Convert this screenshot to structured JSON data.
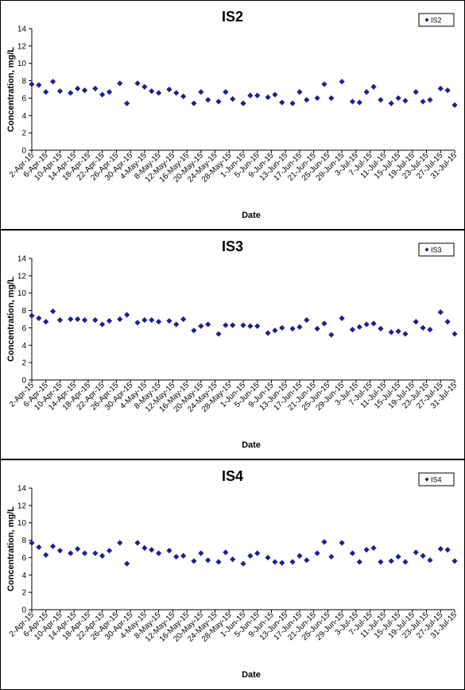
{
  "chart_data": [
    {
      "type": "scatter",
      "title": "IS2",
      "xlabel": "Date",
      "ylabel": "Concentration, mg/L",
      "ylim": [
        0,
        14
      ],
      "yticks": [
        0,
        2,
        4,
        6,
        8,
        10,
        12,
        14
      ],
      "grid": false,
      "legend_position": "top-right",
      "marker_color": "#1f1f8f",
      "xticks": [
        "2-Apr-15",
        "6-Apr-15",
        "10-Apr-15",
        "14-Apr-15",
        "18-Apr-15",
        "22-Apr-15",
        "26-Apr-15",
        "30-Apr-15",
        "4-May-15",
        "8-May-15",
        "12-May-15",
        "16-May-15",
        "20-May-15",
        "24-May-15",
        "28-May-15",
        "1-Jun-15",
        "5-Jun-15",
        "9-Jun-15",
        "13-Jun-15",
        "17-Jun-15",
        "21-Jun-15",
        "25-Jun-15",
        "29-Jun-15",
        "3-Jul-15",
        "7-Jul-15",
        "11-Jul-15",
        "15-Jul-15",
        "19-Jul-15",
        "23-Jul-15",
        "27-Jul-15",
        "31-Jul-15"
      ],
      "x_range": [
        "2-Apr-15",
        "31-Jul-15"
      ],
      "series": [
        {
          "name": "IS2",
          "points": [
            {
              "x": "2-Apr-15",
              "y": 7.6
            },
            {
              "x": "4-Apr-15",
              "y": 7.5
            },
            {
              "x": "6-Apr-15",
              "y": 6.7
            },
            {
              "x": "8-Apr-15",
              "y": 7.9
            },
            {
              "x": "10-Apr-15",
              "y": 6.8
            },
            {
              "x": "13-Apr-15",
              "y": 6.6
            },
            {
              "x": "15-Apr-15",
              "y": 7.1
            },
            {
              "x": "17-Apr-15",
              "y": 6.9
            },
            {
              "x": "20-Apr-15",
              "y": 7.1
            },
            {
              "x": "22-Apr-15",
              "y": 6.4
            },
            {
              "x": "24-Apr-15",
              "y": 6.7
            },
            {
              "x": "27-Apr-15",
              "y": 7.7
            },
            {
              "x": "29-Apr-15",
              "y": 5.4
            },
            {
              "x": "2-May-15",
              "y": 7.7
            },
            {
              "x": "4-May-15",
              "y": 7.3
            },
            {
              "x": "6-May-15",
              "y": 6.8
            },
            {
              "x": "8-May-15",
              "y": 6.6
            },
            {
              "x": "11-May-15",
              "y": 7.0
            },
            {
              "x": "13-May-15",
              "y": 6.6
            },
            {
              "x": "15-May-15",
              "y": 6.2
            },
            {
              "x": "18-May-15",
              "y": 5.4
            },
            {
              "x": "20-May-15",
              "y": 6.7
            },
            {
              "x": "22-May-15",
              "y": 5.8
            },
            {
              "x": "25-May-15",
              "y": 5.6
            },
            {
              "x": "27-May-15",
              "y": 6.7
            },
            {
              "x": "29-May-15",
              "y": 5.9
            },
            {
              "x": "1-Jun-15",
              "y": 5.4
            },
            {
              "x": "3-Jun-15",
              "y": 6.3
            },
            {
              "x": "5-Jun-15",
              "y": 6.3
            },
            {
              "x": "8-Jun-15",
              "y": 6.1
            },
            {
              "x": "10-Jun-15",
              "y": 6.4
            },
            {
              "x": "12-Jun-15",
              "y": 5.5
            },
            {
              "x": "15-Jun-15",
              "y": 5.4
            },
            {
              "x": "17-Jun-15",
              "y": 6.7
            },
            {
              "x": "19-Jun-15",
              "y": 5.8
            },
            {
              "x": "22-Jun-15",
              "y": 6.0
            },
            {
              "x": "24-Jun-15",
              "y": 7.6
            },
            {
              "x": "26-Jun-15",
              "y": 6.0
            },
            {
              "x": "29-Jun-15",
              "y": 7.9
            },
            {
              "x": "2-Jul-15",
              "y": 5.6
            },
            {
              "x": "4-Jul-15",
              "y": 5.5
            },
            {
              "x": "6-Jul-15",
              "y": 6.7
            },
            {
              "x": "8-Jul-15",
              "y": 7.3
            },
            {
              "x": "10-Jul-15",
              "y": 5.8
            },
            {
              "x": "13-Jul-15",
              "y": 5.4
            },
            {
              "x": "15-Jul-15",
              "y": 6.0
            },
            {
              "x": "17-Jul-15",
              "y": 5.7
            },
            {
              "x": "20-Jul-15",
              "y": 6.7
            },
            {
              "x": "22-Jul-15",
              "y": 5.6
            },
            {
              "x": "24-Jul-15",
              "y": 5.8
            },
            {
              "x": "27-Jul-15",
              "y": 7.1
            },
            {
              "x": "29-Jul-15",
              "y": 6.9
            },
            {
              "x": "31-Jul-15",
              "y": 5.2
            }
          ]
        }
      ]
    },
    {
      "type": "scatter",
      "title": "IS3",
      "xlabel": "Date",
      "ylabel": "Concentration, mg/L",
      "ylim": [
        0,
        14
      ],
      "yticks": [
        0,
        2,
        4,
        6,
        8,
        10,
        12,
        14
      ],
      "grid": false,
      "legend_position": "top-right",
      "marker_color": "#1f1f8f",
      "xticks": [
        "2-Apr-15",
        "6-Apr-15",
        "10-Apr-15",
        "14-Apr-15",
        "18-Apr-15",
        "22-Apr-15",
        "26-Apr-15",
        "30-Apr-15",
        "4-May-15",
        "8-May-15",
        "12-May-15",
        "16-May-15",
        "20-May-15",
        "24-May-15",
        "28-May-15",
        "1-Jun-15",
        "5-Jun-15",
        "9-Jun-15",
        "13-Jun-15",
        "17-Jun-15",
        "21-Jun-15",
        "25-Jun-15",
        "29-Jun-15",
        "3-Jul-15",
        "7-Jul-15",
        "11-Jul-15",
        "15-Jul-15",
        "19-Jul-15",
        "23-Jul-15",
        "27-Jul-15",
        "31-Jul-15"
      ],
      "x_range": [
        "2-Apr-15",
        "31-Jul-15"
      ],
      "series": [
        {
          "name": "IS3",
          "points": [
            {
              "x": "2-Apr-15",
              "y": 7.4
            },
            {
              "x": "4-Apr-15",
              "y": 7.1
            },
            {
              "x": "6-Apr-15",
              "y": 6.7
            },
            {
              "x": "8-Apr-15",
              "y": 7.9
            },
            {
              "x": "10-Apr-15",
              "y": 6.9
            },
            {
              "x": "13-Apr-15",
              "y": 7.0
            },
            {
              "x": "15-Apr-15",
              "y": 7.0
            },
            {
              "x": "17-Apr-15",
              "y": 6.9
            },
            {
              "x": "20-Apr-15",
              "y": 6.9
            },
            {
              "x": "22-Apr-15",
              "y": 6.4
            },
            {
              "x": "24-Apr-15",
              "y": 6.8
            },
            {
              "x": "27-Apr-15",
              "y": 7.0
            },
            {
              "x": "29-Apr-15",
              "y": 7.5
            },
            {
              "x": "2-May-15",
              "y": 6.6
            },
            {
              "x": "4-May-15",
              "y": 6.9
            },
            {
              "x": "6-May-15",
              "y": 6.9
            },
            {
              "x": "8-May-15",
              "y": 6.7
            },
            {
              "x": "11-May-15",
              "y": 6.8
            },
            {
              "x": "13-May-15",
              "y": 6.4
            },
            {
              "x": "15-May-15",
              "y": 7.0
            },
            {
              "x": "18-May-15",
              "y": 5.7
            },
            {
              "x": "20-May-15",
              "y": 6.2
            },
            {
              "x": "22-May-15",
              "y": 6.4
            },
            {
              "x": "25-May-15",
              "y": 5.3
            },
            {
              "x": "27-May-15",
              "y": 6.3
            },
            {
              "x": "29-May-15",
              "y": 6.3
            },
            {
              "x": "1-Jun-15",
              "y": 6.3
            },
            {
              "x": "3-Jun-15",
              "y": 6.2
            },
            {
              "x": "5-Jun-15",
              "y": 6.2
            },
            {
              "x": "8-Jun-15",
              "y": 5.4
            },
            {
              "x": "10-Jun-15",
              "y": 5.7
            },
            {
              "x": "12-Jun-15",
              "y": 6.0
            },
            {
              "x": "15-Jun-15",
              "y": 5.9
            },
            {
              "x": "17-Jun-15",
              "y": 6.1
            },
            {
              "x": "19-Jun-15",
              "y": 6.9
            },
            {
              "x": "22-Jun-15",
              "y": 5.9
            },
            {
              "x": "24-Jun-15",
              "y": 6.5
            },
            {
              "x": "26-Jun-15",
              "y": 5.2
            },
            {
              "x": "29-Jun-15",
              "y": 7.1
            },
            {
              "x": "2-Jul-15",
              "y": 5.8
            },
            {
              "x": "4-Jul-15",
              "y": 6.1
            },
            {
              "x": "6-Jul-15",
              "y": 6.4
            },
            {
              "x": "8-Jul-15",
              "y": 6.5
            },
            {
              "x": "10-Jul-15",
              "y": 5.9
            },
            {
              "x": "13-Jul-15",
              "y": 5.5
            },
            {
              "x": "15-Jul-15",
              "y": 5.6
            },
            {
              "x": "17-Jul-15",
              "y": 5.3
            },
            {
              "x": "20-Jul-15",
              "y": 6.7
            },
            {
              "x": "22-Jul-15",
              "y": 6.0
            },
            {
              "x": "24-Jul-15",
              "y": 5.8
            },
            {
              "x": "27-Jul-15",
              "y": 7.8
            },
            {
              "x": "29-Jul-15",
              "y": 6.7
            },
            {
              "x": "31-Jul-15",
              "y": 5.3
            }
          ]
        }
      ]
    },
    {
      "type": "scatter",
      "title": "IS4",
      "xlabel": "Date",
      "ylabel": "Concentration, mg/L",
      "ylim": [
        0,
        14
      ],
      "yticks": [
        0,
        2,
        4,
        6,
        8,
        10,
        12,
        14
      ],
      "grid": false,
      "legend_position": "top-right",
      "marker_color": "#1f1f8f",
      "xticks": [
        "2-Apr-15",
        "6-Apr-15",
        "10-Apr-15",
        "14-Apr-15",
        "18-Apr-15",
        "22-Apr-15",
        "26-Apr-15",
        "30-Apr-15",
        "4-May-15",
        "8-May-15",
        "12-May-15",
        "16-May-15",
        "20-May-15",
        "24-May-15",
        "28-May-15",
        "1-Jun-15",
        "5-Jun-15",
        "9-Jun-15",
        "13-Jun-15",
        "17-Jun-15",
        "21-Jun-15",
        "25-Jun-15",
        "29-Jun-15",
        "3-Jul-15",
        "7-Jul-15",
        "11-Jul-15",
        "15-Jul-15",
        "19-Jul-15",
        "23-Jul-15",
        "27-Jul-15",
        "31-Jul-15"
      ],
      "x_range": [
        "2-Apr-15",
        "31-Jul-15"
      ],
      "series": [
        {
          "name": "IS4",
          "points": [
            {
              "x": "2-Apr-15",
              "y": 7.7
            },
            {
              "x": "4-Apr-15",
              "y": 7.2
            },
            {
              "x": "6-Apr-15",
              "y": 6.3
            },
            {
              "x": "8-Apr-15",
              "y": 7.3
            },
            {
              "x": "10-Apr-15",
              "y": 6.8
            },
            {
              "x": "13-Apr-15",
              "y": 6.5
            },
            {
              "x": "15-Apr-15",
              "y": 7.0
            },
            {
              "x": "17-Apr-15",
              "y": 6.5
            },
            {
              "x": "20-Apr-15",
              "y": 6.5
            },
            {
              "x": "22-Apr-15",
              "y": 6.2
            },
            {
              "x": "24-Apr-15",
              "y": 6.8
            },
            {
              "x": "27-Apr-15",
              "y": 7.7
            },
            {
              "x": "29-Apr-15",
              "y": 5.3
            },
            {
              "x": "2-May-15",
              "y": 7.7
            },
            {
              "x": "4-May-15",
              "y": 7.1
            },
            {
              "x": "6-May-15",
              "y": 6.9
            },
            {
              "x": "8-May-15",
              "y": 6.5
            },
            {
              "x": "11-May-15",
              "y": 6.8
            },
            {
              "x": "13-May-15",
              "y": 6.1
            },
            {
              "x": "15-May-15",
              "y": 6.2
            },
            {
              "x": "18-May-15",
              "y": 5.6
            },
            {
              "x": "20-May-15",
              "y": 6.5
            },
            {
              "x": "22-May-15",
              "y": 5.7
            },
            {
              "x": "25-May-15",
              "y": 5.5
            },
            {
              "x": "27-May-15",
              "y": 6.6
            },
            {
              "x": "29-May-15",
              "y": 5.8
            },
            {
              "x": "1-Jun-15",
              "y": 5.3
            },
            {
              "x": "3-Jun-15",
              "y": 6.2
            },
            {
              "x": "5-Jun-15",
              "y": 6.5
            },
            {
              "x": "8-Jun-15",
              "y": 6.0
            },
            {
              "x": "10-Jun-15",
              "y": 5.5
            },
            {
              "x": "12-Jun-15",
              "y": 5.4
            },
            {
              "x": "15-Jun-15",
              "y": 5.5
            },
            {
              "x": "17-Jun-15",
              "y": 6.2
            },
            {
              "x": "19-Jun-15",
              "y": 5.7
            },
            {
              "x": "22-Jun-15",
              "y": 6.5
            },
            {
              "x": "24-Jun-15",
              "y": 7.8
            },
            {
              "x": "26-Jun-15",
              "y": 6.1
            },
            {
              "x": "29-Jun-15",
              "y": 7.7
            },
            {
              "x": "2-Jul-15",
              "y": 6.5
            },
            {
              "x": "4-Jul-15",
              "y": 5.5
            },
            {
              "x": "6-Jul-15",
              "y": 6.9
            },
            {
              "x": "8-Jul-15",
              "y": 7.1
            },
            {
              "x": "10-Jul-15",
              "y": 5.5
            },
            {
              "x": "13-Jul-15",
              "y": 5.6
            },
            {
              "x": "15-Jul-15",
              "y": 6.1
            },
            {
              "x": "17-Jul-15",
              "y": 5.5
            },
            {
              "x": "20-Jul-15",
              "y": 6.6
            },
            {
              "x": "22-Jul-15",
              "y": 6.2
            },
            {
              "x": "24-Jul-15",
              "y": 5.7
            },
            {
              "x": "27-Jul-15",
              "y": 7.0
            },
            {
              "x": "29-Jul-15",
              "y": 6.9
            },
            {
              "x": "31-Jul-15",
              "y": 5.6
            }
          ]
        }
      ]
    }
  ]
}
